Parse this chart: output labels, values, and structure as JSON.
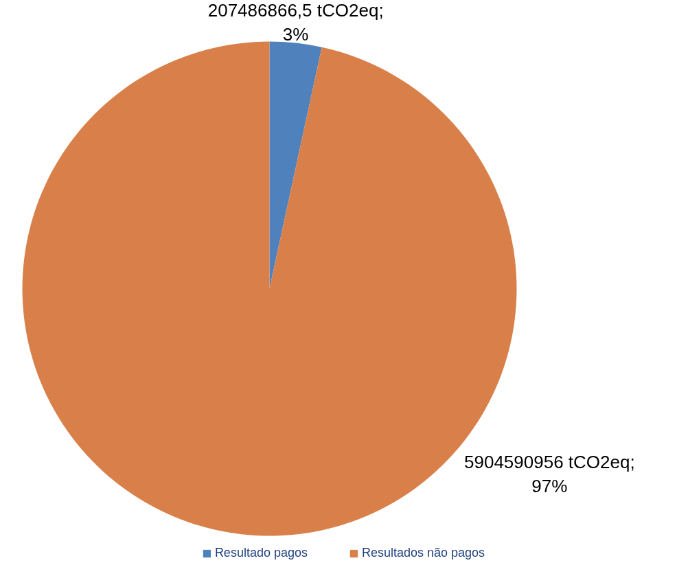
{
  "chart_data": {
    "type": "pie",
    "categories": [
      "Resultado pagos",
      "Resultados não pagos"
    ],
    "values": [
      207486866.5,
      5904590956
    ],
    "colors": [
      "#4f81bd",
      "#d9804a"
    ],
    "value_labels": [
      "207486866,5 tCO2eq;\n3%",
      "5904590956 tCO2eq;\n97%"
    ],
    "legend": "bottom"
  }
}
